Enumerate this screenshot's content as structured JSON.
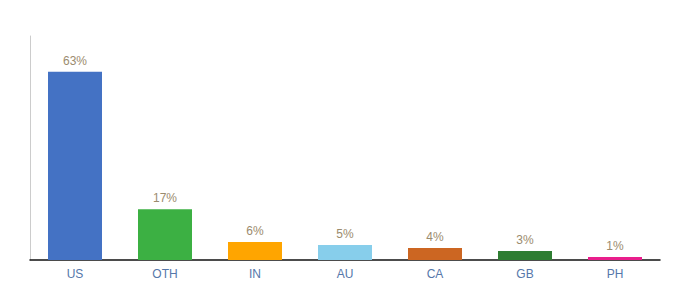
{
  "chart_data": {
    "type": "bar",
    "categories": [
      "US",
      "OTH",
      "IN",
      "AU",
      "CA",
      "GB",
      "PH"
    ],
    "values": [
      63,
      17,
      6,
      5,
      4,
      3,
      1
    ],
    "value_labels": [
      "63%",
      "17%",
      "6%",
      "5%",
      "4%",
      "3%",
      "1%"
    ],
    "data_labels": true,
    "colors": [
      "#4472C4",
      "#3CB043",
      "#FFA500",
      "#87CEEB",
      "#CC6622",
      "#2E7D32",
      "#E91E8C"
    ],
    "ylim": [
      0,
      75
    ],
    "tick_labels": "x",
    "grid": false
  }
}
